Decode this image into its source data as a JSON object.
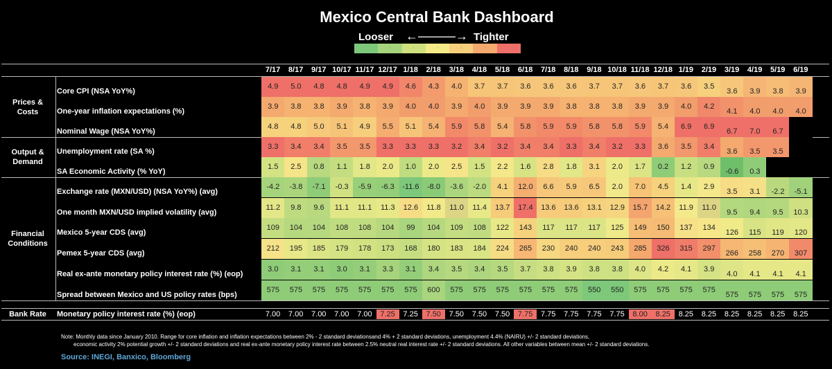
{
  "title": "Mexico Central Bank Dashboard",
  "legend": {
    "looser": "Looser",
    "arrow": "←———→",
    "tighter": "Tighter",
    "colors": [
      "#7dc87a",
      "#a6d47c",
      "#cfe07f",
      "#f5ea88",
      "#f7cf7c",
      "#f4a96e",
      "#ef7068"
    ]
  },
  "months": [
    "7/17",
    "8/17",
    "9/17",
    "10/17",
    "11/17",
    "12/17",
    "1/18",
    "2/18",
    "3/18",
    "4/18",
    "5/18",
    "6/18",
    "7/18",
    "8/18",
    "9/18",
    "10/18",
    "11/18",
    "12/18",
    "1/19",
    "2/19",
    "3/19",
    "4/19",
    "5/19",
    "6/19"
  ],
  "categories": [
    {
      "name": "Prices &\nCosts"
    },
    {
      "name": "Output &\nDemand"
    },
    {
      "name": "Financial\nConditions"
    }
  ],
  "rows": [
    {
      "label": "Core CPI (NSA YoY%)",
      "values": [
        "4.9",
        "5.0",
        "4.8",
        "4.8",
        "4.9",
        "4.9",
        "4.6",
        "4.3",
        "4.0",
        "3.7",
        "3.7",
        "3.6",
        "3.6",
        "3.6",
        "3.7",
        "3.7",
        "3.6",
        "3.7",
        "3.6",
        "3.5",
        "3.6",
        "3.9",
        "3.8",
        "3.9"
      ],
      "colors": [
        "#ef7068",
        "#ef7068",
        "#ef7068",
        "#ef7068",
        "#ef7068",
        "#ef7068",
        "#f1866b",
        "#f39b6d",
        "#f5b271",
        "#f6c577",
        "#f6c577",
        "#f6c77a",
        "#f6c77a",
        "#f6c77a",
        "#f6c577",
        "#f6c577",
        "#f6c77a",
        "#f6c577",
        "#f6c77a",
        "#f6d07c",
        "#f6c77a",
        "#f5b574",
        "#f6bd76",
        "#f5b574"
      ]
    },
    {
      "label": "One-year inflation expectations (%)",
      "values": [
        "3.9",
        "3.8",
        "3.8",
        "3.9",
        "3.8",
        "3.9",
        "4.0",
        "4.0",
        "3.9",
        "4.0",
        "3.9",
        "3.9",
        "3.9",
        "3.8",
        "3.8",
        "3.8",
        "3.9",
        "3.9",
        "4.0",
        "4.2",
        "4.1",
        "4.0",
        "4.0",
        "4.0"
      ],
      "colors": [
        "#f4a96e",
        "#f5b271",
        "#f5b271",
        "#f4a96e",
        "#f5b271",
        "#f4a96e",
        "#f29d6c",
        "#f29d6c",
        "#f4a96e",
        "#f29d6c",
        "#f4a96e",
        "#f4a96e",
        "#f4a96e",
        "#f5b271",
        "#f5b271",
        "#f5b271",
        "#f4a96e",
        "#f4a96e",
        "#f29d6c",
        "#f1886a",
        "#f1926b",
        "#f29d6c",
        "#f29d6c",
        "#f29d6c"
      ]
    },
    {
      "label": "Nominal Wage (NSA YoY%)",
      "values": [
        "4.8",
        "4.8",
        "5.0",
        "5.1",
        "4.9",
        "5.5",
        "5.1",
        "5.4",
        "5.9",
        "5.8",
        "5.4",
        "5.8",
        "5.9",
        "5.9",
        "5.8",
        "5.8",
        "5.9",
        "5.4",
        "6.9",
        "6.9",
        "6.7",
        "7.0",
        "6.7",
        ""
      ],
      "colors": [
        "#f6d27d",
        "#f6d27d",
        "#f6ca7a",
        "#f6c478",
        "#f6ce7c",
        "#f5ad70",
        "#f6c478",
        "#f5b272",
        "#f28a6a",
        "#f2926b",
        "#f5b272",
        "#f2926b",
        "#f28a6a",
        "#f28a6a",
        "#f2926b",
        "#f2926b",
        "#f28a6a",
        "#f5b272",
        "#ef7068",
        "#ef7068",
        "#ef7068",
        "#ef7068",
        "#ef7068",
        ""
      ]
    },
    {
      "label": "Unemployment rate (SA %)",
      "values": [
        "3.3",
        "3.4",
        "3.4",
        "3.5",
        "3.5",
        "3.3",
        "3.3",
        "3.3",
        "3.2",
        "3.4",
        "3.2",
        "3.4",
        "3.4",
        "3.3",
        "3.4",
        "3.2",
        "3.3",
        "3.6",
        "3.5",
        "3.4",
        "3.6",
        "3.5",
        "3.5",
        ""
      ],
      "colors": [
        "#ef7068",
        "#f07e69",
        "#f07e69",
        "#f3976c",
        "#f3976c",
        "#ef7068",
        "#ef7068",
        "#ef7068",
        "#ef7068",
        "#f07e69",
        "#ef7068",
        "#f07e69",
        "#f07e69",
        "#ef7068",
        "#f07e69",
        "#ef7068",
        "#ef7068",
        "#f4a96e",
        "#f3976c",
        "#f07e69",
        "#f4a96e",
        "#f3976c",
        "#f3976c",
        ""
      ]
    },
    {
      "label": "SA Economic Activity (% YoY)",
      "values": [
        "1.5",
        "2.5",
        "0.8",
        "1.1",
        "1.8",
        "2.0",
        "1.0",
        "2.0",
        "2.5",
        "1.5",
        "2.2",
        "1.6",
        "2.8",
        "1.8",
        "3.1",
        "2.0",
        "1.7",
        "0.2",
        "1.2",
        "0.9",
        "-0.6",
        "0.3",
        "",
        ""
      ],
      "colors": [
        "#d3e383",
        "#f6e489",
        "#b8d97f",
        "#c4dd81",
        "#e2e787",
        "#ecea88",
        "#c0dc80",
        "#ecea88",
        "#f6e489",
        "#d3e383",
        "#f4e88a",
        "#d8e484",
        "#f6dc85",
        "#e2e787",
        "#f6d480",
        "#ecea88",
        "#dce586",
        "#8fcc78",
        "#c8df81",
        "#b8d97f",
        "#6fbf6a",
        "#8fcc78",
        "",
        ""
      ]
    },
    {
      "label": "Exchange rate (MXN/USD) (NSA YoY%) (avg)",
      "values": [
        "-4.2",
        "-3.8",
        "-7.1",
        "-0.3",
        "-5.9",
        "-6.3",
        "-11.6",
        "-8.0",
        "-3.6",
        "-2.0",
        "4.1",
        "12.0",
        "6.6",
        "5.9",
        "6.5",
        "2.0",
        "7.0",
        "4.5",
        "1.4",
        "2.9",
        "3.5",
        "3.1",
        "-2.2",
        "-5.1"
      ],
      "colors": [
        "#a6d47c",
        "#aad57c",
        "#8fcc78",
        "#d0e182",
        "#98cf79",
        "#94ce79",
        "#7dc87a",
        "#8acb77",
        "#acd67d",
        "#bcdb80",
        "#f6d27d",
        "#f5ad70",
        "#f6c77a",
        "#f6ca7a",
        "#f6c77a",
        "#f0e88a",
        "#f6c377",
        "#f6d27d",
        "#e6e887",
        "#f4e88a",
        "#f6dc84",
        "#f6e087",
        "#bad97f",
        "#a1d27b"
      ]
    },
    {
      "label": "One month MXN/USD implied volatility (avg)",
      "values": [
        "11.2",
        "9.8",
        "9.6",
        "11.1",
        "11.1",
        "11.3",
        "12.6",
        "11.8",
        "11.0",
        "11.4",
        "13.7",
        "17.4",
        "13.6",
        "13.6",
        "13.1",
        "12.9",
        "15.7",
        "14.2",
        "11.9",
        "11.0",
        "9.5",
        "9.4",
        "9.5",
        "10.3"
      ],
      "colors": [
        "#e4e788",
        "#bfdb80",
        "#b8d97f",
        "#e1e687",
        "#e1e687",
        "#e8e888",
        "#f6dc85",
        "#f2e98a",
        "#ddd586",
        "#e9e888",
        "#f6cb7a",
        "#ef7068",
        "#f6cc7b",
        "#f6cc7b",
        "#f6d27e",
        "#f6d580",
        "#f4a46e",
        "#f6c077",
        "#f4e98a",
        "#ddd586",
        "#b4d87e",
        "#b1d77e",
        "#b4d87e",
        "#cfe082"
      ]
    },
    {
      "label": "Mexico 5-year CDS (avg)",
      "values": [
        "109",
        "104",
        "104",
        "108",
        "108",
        "104",
        "99",
        "104",
        "109",
        "108",
        "122",
        "143",
        "117",
        "117",
        "117",
        "125",
        "149",
        "150",
        "137",
        "134",
        "126",
        "115",
        "119",
        "120"
      ],
      "colors": [
        "#c4dd81",
        "#b6d87f",
        "#b6d87f",
        "#c0dc80",
        "#c0dc80",
        "#b6d87f",
        "#a8d57d",
        "#b6d87f",
        "#c4dd81",
        "#c0dc80",
        "#e8e888",
        "#f6d27d",
        "#dce586",
        "#dce586",
        "#dce586",
        "#eeea89",
        "#f5bd75",
        "#f5ba74",
        "#f6e088",
        "#f6e689",
        "#f0ea89",
        "#d7e384",
        "#e0e686",
        "#e2e787"
      ]
    },
    {
      "label": "Pemex 5-year CDS (avg)",
      "values": [
        "212",
        "195",
        "185",
        "179",
        "178",
        "173",
        "168",
        "180",
        "183",
        "184",
        "224",
        "265",
        "230",
        "240",
        "240",
        "243",
        "285",
        "326",
        "315",
        "297",
        "266",
        "258",
        "270",
        "307"
      ],
      "colors": [
        "#f6e389",
        "#e8e888",
        "#dce586",
        "#d4e384",
        "#d2e283",
        "#cce082",
        "#c6de81",
        "#d6e384",
        "#dae485",
        "#dbe585",
        "#f6dc85",
        "#f6b874",
        "#f6d882",
        "#f6ce7c",
        "#f6ce7c",
        "#f6cc7b",
        "#f4a86e",
        "#ef7068",
        "#f07c6a",
        "#f2906c",
        "#f6b774",
        "#f6bf76",
        "#f6b473",
        "#f18a6b"
      ]
    },
    {
      "label": "Real ex-ante monetary policy interest rate (%) (eop)",
      "values": [
        "3.0",
        "3.1",
        "3.1",
        "3.0",
        "3.1",
        "3.3",
        "3.1",
        "3.4",
        "3.5",
        "3.4",
        "3.5",
        "3.7",
        "3.8",
        "3.9",
        "3.8",
        "3.8",
        "4.0",
        "4.2",
        "4.1",
        "3.9",
        "4.0",
        "4.1",
        "4.1",
        "4.1"
      ],
      "colors": [
        "#8fcc78",
        "#94ce79",
        "#94ce79",
        "#8fcc78",
        "#94ce79",
        "#a6d47c",
        "#94ce79",
        "#aed67e",
        "#b6d87f",
        "#aed67e",
        "#b6d87f",
        "#c6de81",
        "#cee182",
        "#d6e384",
        "#cee182",
        "#cee182",
        "#dee586",
        "#ecea88",
        "#e6e887",
        "#d6e384",
        "#dee586",
        "#e6e887",
        "#e6e887",
        "#e6e887"
      ]
    },
    {
      "label": "Spread between Mexico and US policy rates (bps)",
      "values": [
        "575",
        "575",
        "575",
        "575",
        "575",
        "575",
        "575",
        "600",
        "575",
        "575",
        "575",
        "575",
        "575",
        "575",
        "550",
        "550",
        "575",
        "575",
        "575",
        "575",
        "575",
        "575",
        "575",
        "575"
      ],
      "colors": [
        "#8fcc78",
        "#8fcc78",
        "#8fcc78",
        "#8fcc78",
        "#8fcc78",
        "#8fcc78",
        "#8fcc78",
        "#a8d57d",
        "#8fcc78",
        "#8fcc78",
        "#8fcc78",
        "#8fcc78",
        "#8fcc78",
        "#8fcc78",
        "#7dc87a",
        "#7dc87a",
        "#8fcc78",
        "#8fcc78",
        "#8fcc78",
        "#8fcc78",
        "#8fcc78",
        "#8fcc78",
        "#8fcc78",
        "#8fcc78"
      ]
    }
  ],
  "bank": {
    "category": "Bank Rate",
    "label": "Monetary policy interest rate (%) (eop)",
    "values": [
      "7.00",
      "7.00",
      "7.00",
      "7.00",
      "7.00",
      "7.25",
      "7.25",
      "7.50",
      "7.50",
      "7.50",
      "7.50",
      "7.75",
      "7.75",
      "7.75",
      "7.75",
      "7.75",
      "8.00",
      "8.25",
      "8.25",
      "8.25",
      "8.25",
      "8.25",
      "8.25",
      "8.25"
    ],
    "highlight": [
      "",
      "",
      "",
      "",
      "",
      "#ef7068",
      "",
      "#ef7068",
      "",
      "",
      "",
      "#ef7068",
      "",
      "",
      "",
      "",
      "#ef7068",
      "#ef7068",
      "",
      "",
      "",
      "",
      "",
      ""
    ]
  },
  "note_line1": "Note: Monthly data since January 2010. Range for core inflation and inflation expectations between 2% - 2 standard deviationsand 4% + 2 standard deviations, unemployment 4.4% (NAIRU) +/- 2 standard deviations,",
  "note_line2": "economic activity 2% potential growth +/- 2 standard deviations and real ex-ante monetary policy interest rate between 2.5% neutral real interest rate +/- 2 standard deviations. All other variables between mean +/- 2 standard deviations.",
  "source": "Source: INEGI, Banxico, Bloomberg"
}
